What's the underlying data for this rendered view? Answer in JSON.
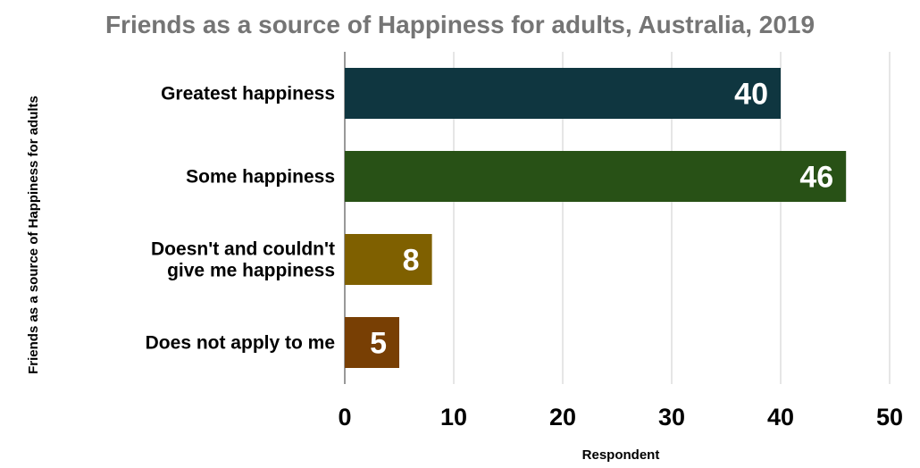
{
  "chart_data": {
    "type": "bar",
    "orientation": "horizontal",
    "title": "Friends as a source of Happiness for adults, Australia, 2019",
    "xlabel": "Respondent",
    "ylabel": "Friends as a source of Happiness for adults",
    "categories": [
      [
        "Greatest happiness"
      ],
      [
        "Some happiness"
      ],
      [
        "Doesn't and couldn't",
        "give me happiness"
      ],
      [
        "Does not apply to me"
      ]
    ],
    "values": [
      40,
      46,
      8,
      5
    ],
    "data_labels": [
      "40",
      "46",
      "8",
      "5"
    ],
    "colors": [
      "#0f3640",
      "#285116",
      "#7f6000",
      "#783f04"
    ],
    "xlim": [
      0,
      50
    ],
    "xticks": [
      0,
      10,
      20,
      30,
      40,
      50
    ],
    "grid": true,
    "legend": "none"
  }
}
